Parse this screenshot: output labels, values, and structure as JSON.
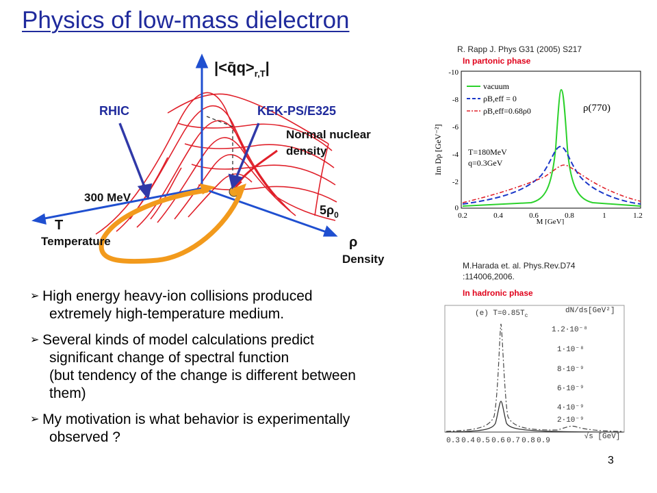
{
  "slide": {
    "title": "Physics of low-mass dielectron",
    "page_number": "3"
  },
  "diagram": {
    "label_rhic": "RHIC",
    "label_kek": "KEK-PS/E325",
    "axis_top": "|<q̄q>",
    "axis_top_sub": "r,T",
    "axis_top_end": "|",
    "label_300mev": "300 MeV",
    "label_t": "T",
    "label_temperature": "Temperature",
    "label_normal_1": "Normal nuclear",
    "label_normal_2": "density",
    "label_5rho": "5ρ",
    "label_5rho_sub": "0",
    "label_rho": "ρ",
    "label_density": "Density",
    "colors": {
      "mesh": "#e0202a",
      "axes": "#1f4fd0",
      "arrow": "#3039a8",
      "loop": "#f29a1c"
    }
  },
  "bullets": [
    {
      "line": "High energy heavy-ion collisions produced",
      "cont": [
        "extremely high-temperature medium."
      ]
    },
    {
      "line": "Several kinds of model calculations predict",
      "cont": [
        "significant change of spectral function",
        "(but tendency of the change is different between",
        "them)"
      ]
    },
    {
      "line": "My motivation is what behavior is experimentally",
      "cont": [
        "observed ?"
      ]
    }
  ],
  "plot_top": {
    "citation": "R. Rapp J. Phys G31 (2005) S217",
    "phase": "In partonic phase",
    "legend": [
      "vacuum",
      "ρB,eff = 0",
      "ρB,eff=0.68ρ0"
    ],
    "params": [
      "T=180MeV",
      "q=0.3GeV"
    ],
    "annotation": "ρ(770)",
    "ylabel": "Im Dρ [GeV⁻²]",
    "xlabel": "M [GeV]",
    "yticks": [
      "-10",
      "-8",
      "-6",
      "-4",
      "-2",
      "0"
    ],
    "xticks": [
      "0.2",
      "0.4",
      "0.6",
      "0.8",
      "1",
      "1.2"
    ]
  },
  "plot_bottom": {
    "citation_1": "M.Harada et. al. Phys.Rev.D74",
    "citation_2": ":114006,2006.",
    "phase": "In hadronic phase",
    "panel_label": "(e)  T=0.85T",
    "panel_label_sub": "c",
    "ylabel": "dN/ds[GeV²]",
    "yticks": [
      "1.2·10⁻⁸",
      "1·10⁻⁸",
      "8·10⁻⁹",
      "6·10⁻⁹",
      "4·10⁻⁹",
      "2·10⁻⁹"
    ],
    "xticks": [
      "0.3",
      "0.4",
      "0.5",
      "0.6",
      "0.7",
      "0.8",
      "0.9"
    ],
    "xlabel": "√s [GeV]"
  }
}
